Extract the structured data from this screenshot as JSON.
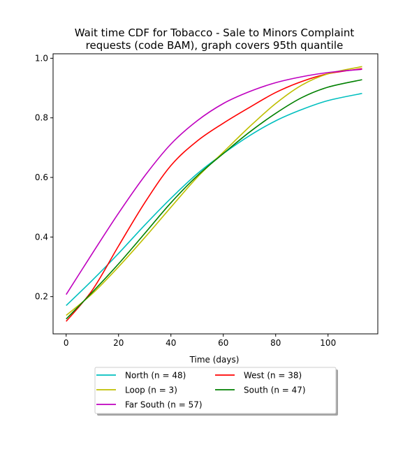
{
  "chart_data": {
    "type": "line",
    "title_line1": "Wait time CDF for Tobacco - Sale to Minors Complaint",
    "title_line2": "requests (code BAM), graph covers 95th quantile",
    "xlabel": "Time (days)",
    "ylabel": "",
    "xlim": [
      -5,
      119
    ],
    "ylim": [
      0.075,
      1.015
    ],
    "xticks": [
      0,
      20,
      40,
      60,
      80,
      100
    ],
    "yticks": [
      0.2,
      0.4,
      0.6,
      0.8,
      1.0
    ],
    "xtick_labels": [
      "0",
      "20",
      "40",
      "60",
      "80",
      "100"
    ],
    "ytick_labels": [
      "0.2",
      "0.4",
      "0.6",
      "0.8",
      "1.0"
    ],
    "grid": false,
    "legend_position": "below",
    "series": [
      {
        "name": "North (n = 48)",
        "color": "#00bfbf",
        "x": [
          0,
          10,
          20,
          30,
          40,
          50,
          60,
          70,
          80,
          90,
          100,
          113
        ],
        "y": [
          0.17,
          0.255,
          0.345,
          0.44,
          0.53,
          0.612,
          0.68,
          0.74,
          0.79,
          0.828,
          0.858,
          0.882
        ]
      },
      {
        "name": "West (n = 38)",
        "color": "#ff0000",
        "x": [
          0,
          10,
          20,
          30,
          40,
          50,
          60,
          70,
          80,
          90,
          100,
          113
        ],
        "y": [
          0.117,
          0.222,
          0.37,
          0.515,
          0.64,
          0.722,
          0.782,
          0.835,
          0.885,
          0.922,
          0.948,
          0.965
        ]
      },
      {
        "name": "Loop (n = 3)",
        "color": "#bfbf00",
        "x": [
          0,
          10,
          20,
          30,
          40,
          50,
          60,
          70,
          80,
          90,
          100,
          113
        ],
        "y": [
          0.137,
          0.21,
          0.3,
          0.398,
          0.5,
          0.6,
          0.685,
          0.77,
          0.848,
          0.91,
          0.948,
          0.972
        ]
      },
      {
        "name": "South (n = 47)",
        "color": "#008000",
        "x": [
          0,
          10,
          20,
          30,
          40,
          50,
          60,
          70,
          80,
          90,
          100,
          113
        ],
        "y": [
          0.125,
          0.215,
          0.31,
          0.412,
          0.515,
          0.605,
          0.68,
          0.752,
          0.815,
          0.868,
          0.903,
          0.928
        ]
      },
      {
        "name": "Far South (n = 57)",
        "color": "#bf00bf",
        "x": [
          0,
          10,
          20,
          30,
          40,
          50,
          60,
          70,
          80,
          90,
          100,
          113
        ],
        "y": [
          0.207,
          0.345,
          0.48,
          0.605,
          0.712,
          0.79,
          0.848,
          0.888,
          0.918,
          0.938,
          0.952,
          0.963
        ]
      }
    ],
    "legend_order": [
      0,
      2,
      4,
      1,
      3
    ]
  }
}
